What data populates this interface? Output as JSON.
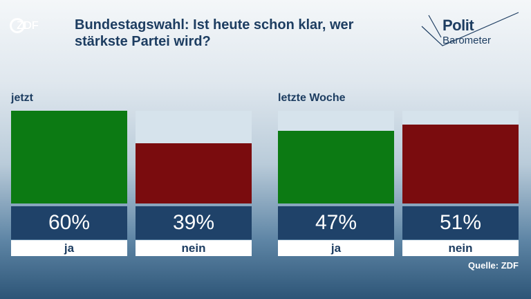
{
  "header": {
    "logo_text": "ZDF",
    "title": "Bundestagswahl: Ist heute schon klar, wer stärkste Partei wird?",
    "brand_line1": "Polit",
    "brand_line2": "Barometer"
  },
  "chart_data": [
    {
      "type": "bar",
      "title": "jetzt",
      "categories": [
        "ja",
        "nein"
      ],
      "values": [
        60,
        39
      ],
      "value_labels": [
        "60%",
        "39%"
      ],
      "ylim": [
        0,
        60
      ],
      "colors": [
        "#0c7a13",
        "#7a0c0e"
      ]
    },
    {
      "type": "bar",
      "title": "letzte Woche",
      "categories": [
        "ja",
        "nein"
      ],
      "values": [
        47,
        51
      ],
      "value_labels": [
        "47%",
        "51%"
      ],
      "ylim": [
        0,
        60
      ],
      "colors": [
        "#0c7a13",
        "#7a0c0e"
      ]
    }
  ],
  "footer": {
    "source": "Quelle: ZDF"
  }
}
